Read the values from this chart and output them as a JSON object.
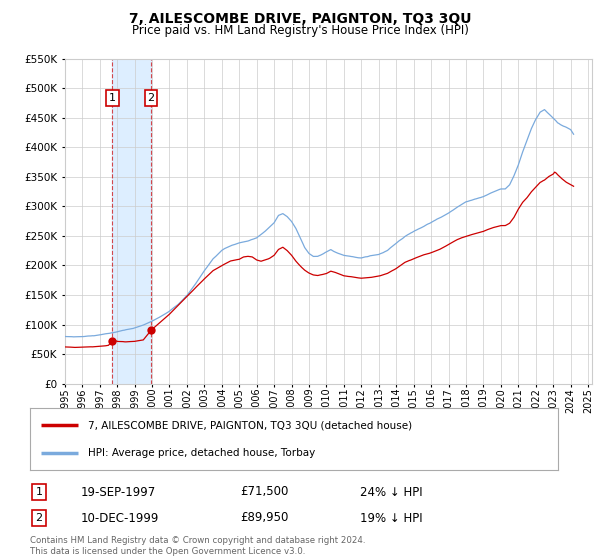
{
  "title": "7, AILESCOMBE DRIVE, PAIGNTON, TQ3 3QU",
  "subtitle": "Price paid vs. HM Land Registry's House Price Index (HPI)",
  "legend_line1": "7, AILESCOMBE DRIVE, PAIGNTON, TQ3 3QU (detached house)",
  "legend_line2": "HPI: Average price, detached house, Torbay",
  "transaction1_date": "19-SEP-1997",
  "transaction1_price": "£71,500",
  "transaction1_hpi": "24% ↓ HPI",
  "transaction1_year": 1997.72,
  "transaction1_value": 71500,
  "transaction2_date": "10-DEC-1999",
  "transaction2_price": "£89,950",
  "transaction2_hpi": "19% ↓ HPI",
  "transaction2_year": 1999.94,
  "transaction2_value": 89950,
  "footer": "Contains HM Land Registry data © Crown copyright and database right 2024.\nThis data is licensed under the Open Government Licence v3.0.",
  "ylim": [
    0,
    550000
  ],
  "yticks": [
    0,
    50000,
    100000,
    150000,
    200000,
    250000,
    300000,
    350000,
    400000,
    450000,
    500000,
    550000
  ],
  "xlim": [
    1995.0,
    2025.2
  ],
  "red_line_color": "#cc0000",
  "blue_line_color": "#7aaadd",
  "grid_color": "#cccccc",
  "span_color": "#ddeeff",
  "background_color": "#ffffff"
}
